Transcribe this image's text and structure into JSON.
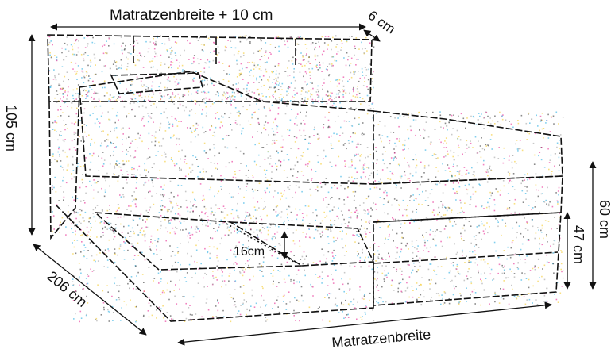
{
  "labels": {
    "top_width": "Matratzenbreite + 10 cm",
    "headboard_depth": "6 cm",
    "total_height": "105 cm",
    "length": "206 cm",
    "bottom_width": "Matratzenbreite",
    "side_height": "47 cm",
    "topper_height": "60 cm",
    "storage_depth": "16cm"
  },
  "colors": {
    "line": "#111111",
    "noise": [
      "#e6198a",
      "#1aa7e0",
      "#f2c418",
      "#2a2a2a",
      "#9a9a9a"
    ]
  }
}
